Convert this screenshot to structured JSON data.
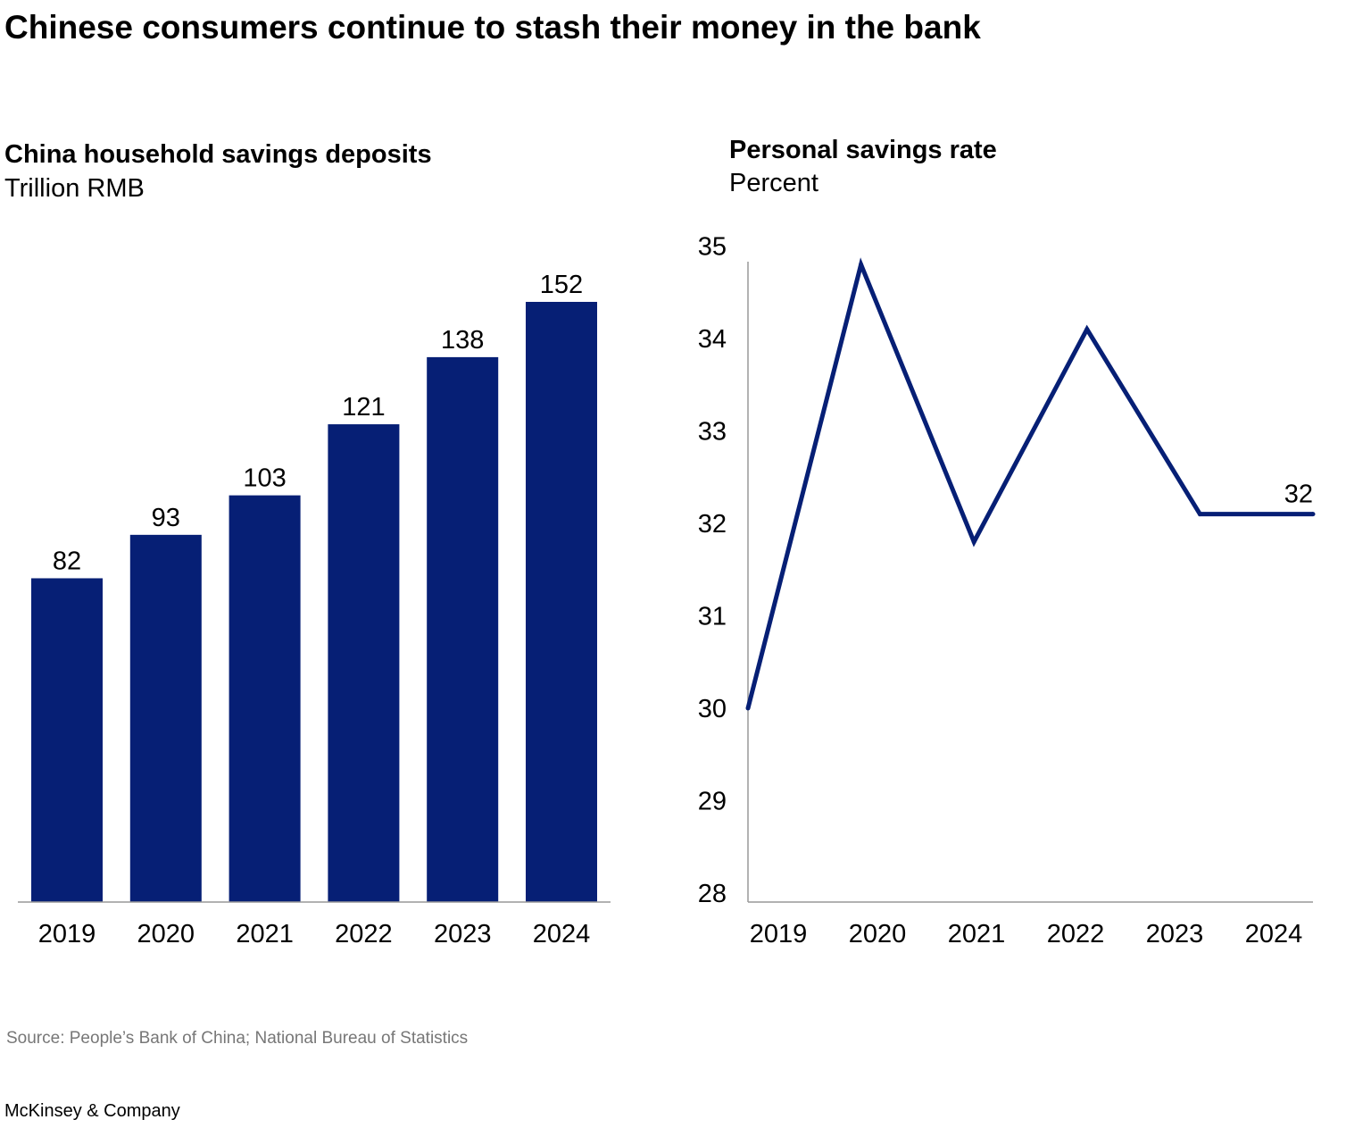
{
  "title": "Chinese consumers continue to stash their money in the bank",
  "source": "Source: People’s Bank of China; National Bureau of Statistics",
  "brand": "McKinsey & Company",
  "colors": {
    "series": "#061f75",
    "axis": "#999999"
  },
  "chart_data": [
    {
      "type": "bar",
      "title": "China household savings deposits",
      "ylabel": "Trillion RMB",
      "categories": [
        "2019",
        "2020",
        "2021",
        "2022",
        "2023",
        "2024"
      ],
      "values": [
        82,
        93,
        103,
        121,
        138,
        152
      ],
      "data_labels": [
        "82",
        "93",
        "103",
        "121",
        "138",
        "152"
      ],
      "ylim": [
        0,
        152
      ],
      "grid": false
    },
    {
      "type": "line",
      "title": "Personal savings rate",
      "ylabel": "Percent",
      "categories": [
        "2019",
        "2020",
        "2021",
        "2022",
        "2023",
        "2024"
      ],
      "values": [
        30.0,
        34.8,
        31.8,
        34.1,
        32.1,
        32.1
      ],
      "yticks": [
        "28",
        "29",
        "30",
        "31",
        "32",
        "33",
        "34",
        "35"
      ],
      "end_label": "32",
      "ylim": [
        28,
        35
      ],
      "grid": false
    }
  ]
}
